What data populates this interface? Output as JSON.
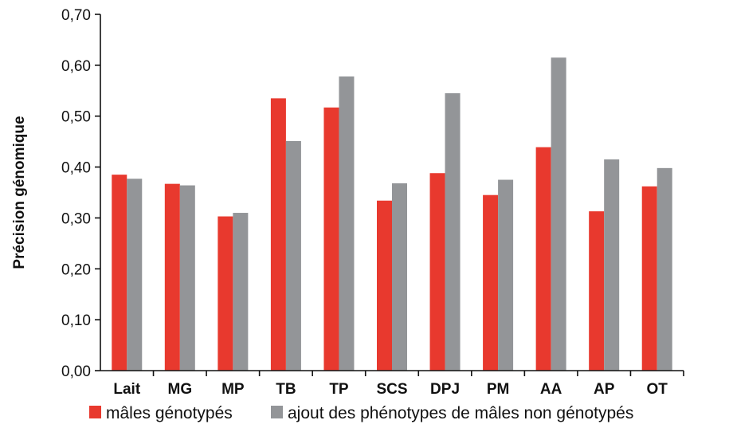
{
  "chart_data": {
    "type": "bar",
    "title": "",
    "xlabel": "",
    "ylabel": "Précision génomique",
    "ylim": [
      0,
      0.7
    ],
    "yticks": [
      "0,00",
      "0,10",
      "0,20",
      "0,30",
      "0,40",
      "0,50",
      "0,60",
      "0,70"
    ],
    "categories": [
      "Lait",
      "MG",
      "MP",
      "TB",
      "TP",
      "SCS",
      "DPJ",
      "PM",
      "AA",
      "AP",
      "OT"
    ],
    "series": [
      {
        "name": "mâles génotypés",
        "color": "#e8392e",
        "values": [
          0.385,
          0.367,
          0.303,
          0.535,
          0.517,
          0.334,
          0.388,
          0.345,
          0.439,
          0.313,
          0.362
        ]
      },
      {
        "name": "ajout des phénotypes de mâles non génotypés",
        "color": "#939598",
        "values": [
          0.377,
          0.364,
          0.31,
          0.451,
          0.578,
          0.368,
          0.545,
          0.375,
          0.615,
          0.415,
          0.398
        ]
      }
    ],
    "grid": false,
    "legend_position": "bottom"
  }
}
